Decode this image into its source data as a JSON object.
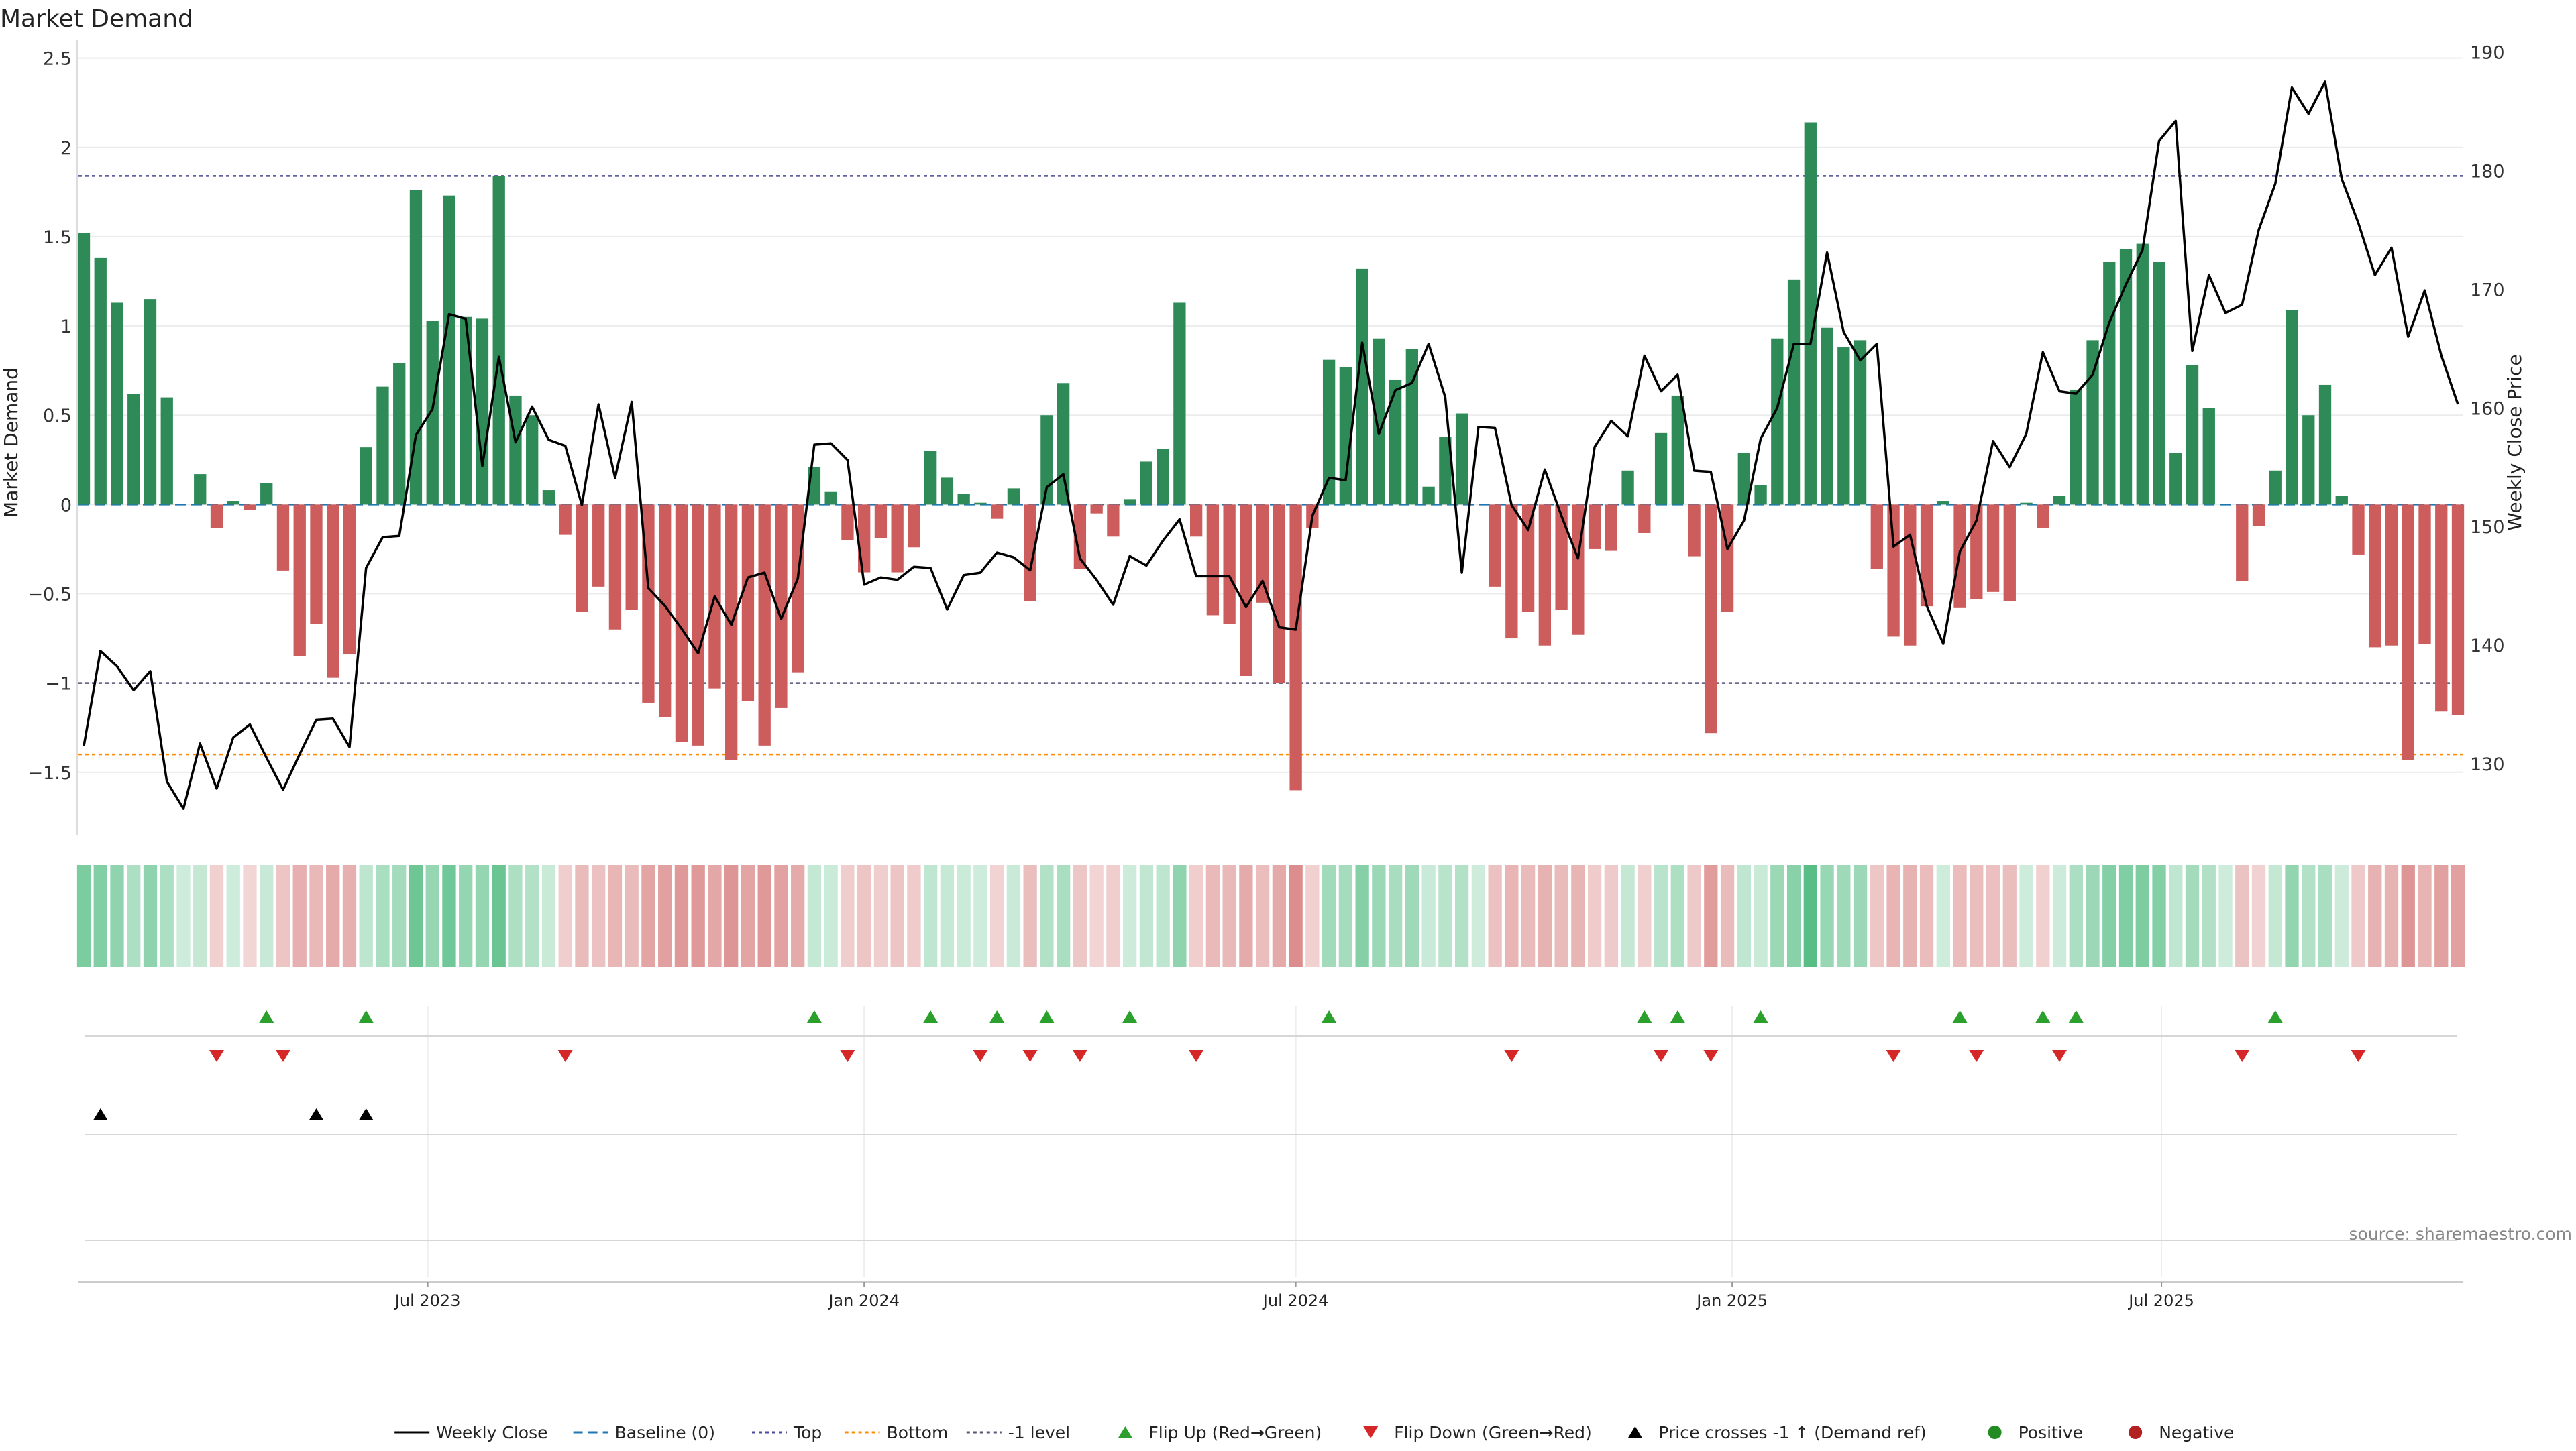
{
  "chart_data": {
    "type": "bar",
    "title": "Market Demand",
    "ylabel_left": "Market Demand",
    "ylabel_right": "Weekly Close Price",
    "source": "source: sharemaestro.com",
    "ylim_left": [
      -1.85,
      2.6
    ],
    "ylim_right": [
      124,
      191
    ],
    "yticks_left": [
      2.5,
      2,
      1.5,
      1,
      0.5,
      0,
      -0.5,
      -1,
      -1.5
    ],
    "ytick_labels_left": [
      "2.5",
      "2",
      "1.5",
      "1",
      "0.5",
      "0",
      "−0.5",
      "−1",
      "−1.5"
    ],
    "yticks_right": [
      190,
      180,
      170,
      160,
      150,
      140,
      130
    ],
    "ytick_labels_right": [
      "190",
      "180",
      "170",
      "160",
      "150",
      "140",
      "130"
    ],
    "x_start": "2023-02-06",
    "x_end": "2025-11-03",
    "week_count": 144,
    "xtick_dates": [
      "2023-07-01",
      "2024-01-01",
      "2024-07-01",
      "2025-01-01",
      "2025-07-01"
    ],
    "xtick_labels": [
      "Jul 2023",
      "Jan 2024",
      "Jul 2024",
      "Jan 2025",
      "Jul 2025"
    ],
    "reference_lines": {
      "top": 1.84,
      "bottom": -1.4,
      "minus_one_level": -1.0,
      "baseline": 0
    },
    "demand_values": [
      1.52,
      1.38,
      1.13,
      0.62,
      1.15,
      0.6,
      0.0,
      0.17,
      -0.13,
      0.02,
      -0.03,
      0.12,
      -0.37,
      -0.85,
      -0.67,
      -0.97,
      -0.84,
      0.32,
      0.66,
      0.79,
      1.76,
      1.03,
      1.73,
      1.05,
      1.04,
      1.84,
      0.61,
      0.5,
      0.08,
      -0.17,
      -0.6,
      -0.46,
      -0.7,
      -0.59,
      -1.11,
      -1.19,
      -1.33,
      -1.35,
      -1.03,
      -1.43,
      -1.1,
      -1.35,
      -1.14,
      -0.94,
      0.21,
      0.07,
      -0.2,
      -0.38,
      -0.19,
      -0.38,
      -0.24,
      0.3,
      0.15,
      0.06,
      0.01,
      -0.08,
      0.09,
      -0.54,
      0.5,
      0.68,
      -0.36,
      -0.05,
      -0.18,
      0.03,
      0.24,
      0.31,
      1.13,
      -0.18,
      -0.62,
      -0.67,
      -0.96,
      -0.55,
      -1.0,
      -1.6,
      -0.13,
      0.81,
      0.77,
      1.32,
      0.93,
      0.7,
      0.87,
      0.1,
      0.38,
      0.51,
      0.0,
      -0.46,
      -0.75,
      -0.6,
      -0.79,
      -0.59,
      -0.73,
      -0.25,
      -0.26,
      0.19,
      -0.16,
      0.4,
      0.61,
      -0.29,
      -1.28,
      -0.6,
      0.29,
      0.11,
      0.93,
      1.26,
      2.14,
      0.99,
      0.88,
      0.92,
      -0.36,
      -0.74,
      -0.79,
      -0.57,
      0.02,
      -0.58,
      -0.53,
      -0.49,
      -0.54,
      0.01,
      -0.13,
      0.05,
      0.64,
      0.92,
      1.36,
      1.43,
      1.46,
      1.36,
      0.29,
      0.78,
      0.54,
      0.0,
      -0.43,
      -0.12,
      0.19,
      1.09,
      0.5,
      0.67,
      0.05,
      -0.28,
      -0.8,
      -0.79,
      -1.43,
      -0.78,
      -1.16,
      -1.18
    ],
    "close_values": [
      131.5,
      139.5,
      138.2,
      136.2,
      137.8,
      128.5,
      126.2,
      131.7,
      127.9,
      132.2,
      133.3,
      130.5,
      127.8,
      130.8,
      133.7,
      133.8,
      131.4,
      146.5,
      149.1,
      149.2,
      157.7,
      159.9,
      167.9,
      167.5,
      155.1,
      164.3,
      157.1,
      160.1,
      157.3,
      156.8,
      151.8,
      160.3,
      154.1,
      160.5,
      144.8,
      143.3,
      141.4,
      139.3,
      144.1,
      141.7,
      145.7,
      146.1,
      142.2,
      145.6,
      156.9,
      157.0,
      155.6,
      145.1,
      145.7,
      145.5,
      146.6,
      146.5,
      143.0,
      145.9,
      146.1,
      147.8,
      147.4,
      146.3,
      153.3,
      154.4,
      147.3,
      145.5,
      143.4,
      147.5,
      146.7,
      148.8,
      150.6,
      145.8,
      145.8,
      145.8,
      143.2,
      145.4,
      141.5,
      141.3,
      150.9,
      154.1,
      153.9,
      165.5,
      157.8,
      161.5,
      162.1,
      165.4,
      160.9,
      146.1,
      158.4,
      158.3,
      151.8,
      149.7,
      154.8,
      150.9,
      147.3,
      156.7,
      158.9,
      157.6,
      164.4,
      161.4,
      162.8,
      154.7,
      154.6,
      148.1,
      150.5,
      157.4,
      160.0,
      165.4,
      165.4,
      173.1,
      166.4,
      164.0,
      165.4,
      148.3,
      149.3,
      143.3,
      140.1,
      147.9,
      150.5,
      157.2,
      155.0,
      157.8,
      164.7,
      161.4,
      161.2,
      162.8,
      167.2,
      170.4,
      173.3,
      182.5,
      184.2,
      164.8,
      171.2,
      168.0,
      168.7,
      175.0,
      178.9,
      187.0,
      184.8,
      187.5,
      179.3,
      175.6,
      171.2,
      173.5,
      166.0,
      169.9,
      164.4,
      160.3
    ],
    "flip_up_weeks": [
      11,
      17,
      44,
      51,
      55,
      58,
      63,
      75,
      94,
      96,
      101,
      113,
      118,
      120,
      132
    ],
    "flip_down_weeks": [
      8,
      12,
      29,
      46,
      54,
      57,
      60,
      67,
      86,
      95,
      98,
      109,
      114,
      119,
      130,
      137
    ],
    "price_cross_weeks": [
      1,
      14,
      17
    ],
    "legend": [
      "Weekly Close",
      "Baseline (0)",
      "Top",
      "Bottom",
      "-1 level",
      "Flip Up (Red→Green)",
      "Flip Down (Green→Red)",
      "Price crosses -1 ↑ (Demand ref)",
      "Positive",
      "Negative"
    ],
    "colors": {
      "positive": "#2e8b57",
      "negative": "#cd5c5c",
      "close_line": "#000000",
      "baseline": "#1f77b4",
      "top": "#4b4b9b",
      "bottom": "#ff8c00",
      "minus_one": "#555577",
      "flip_up": "#2ca02c",
      "flip_down": "#d62728",
      "cross": "#000000",
      "positive_dot": "#228b22",
      "negative_dot": "#b22222"
    }
  }
}
